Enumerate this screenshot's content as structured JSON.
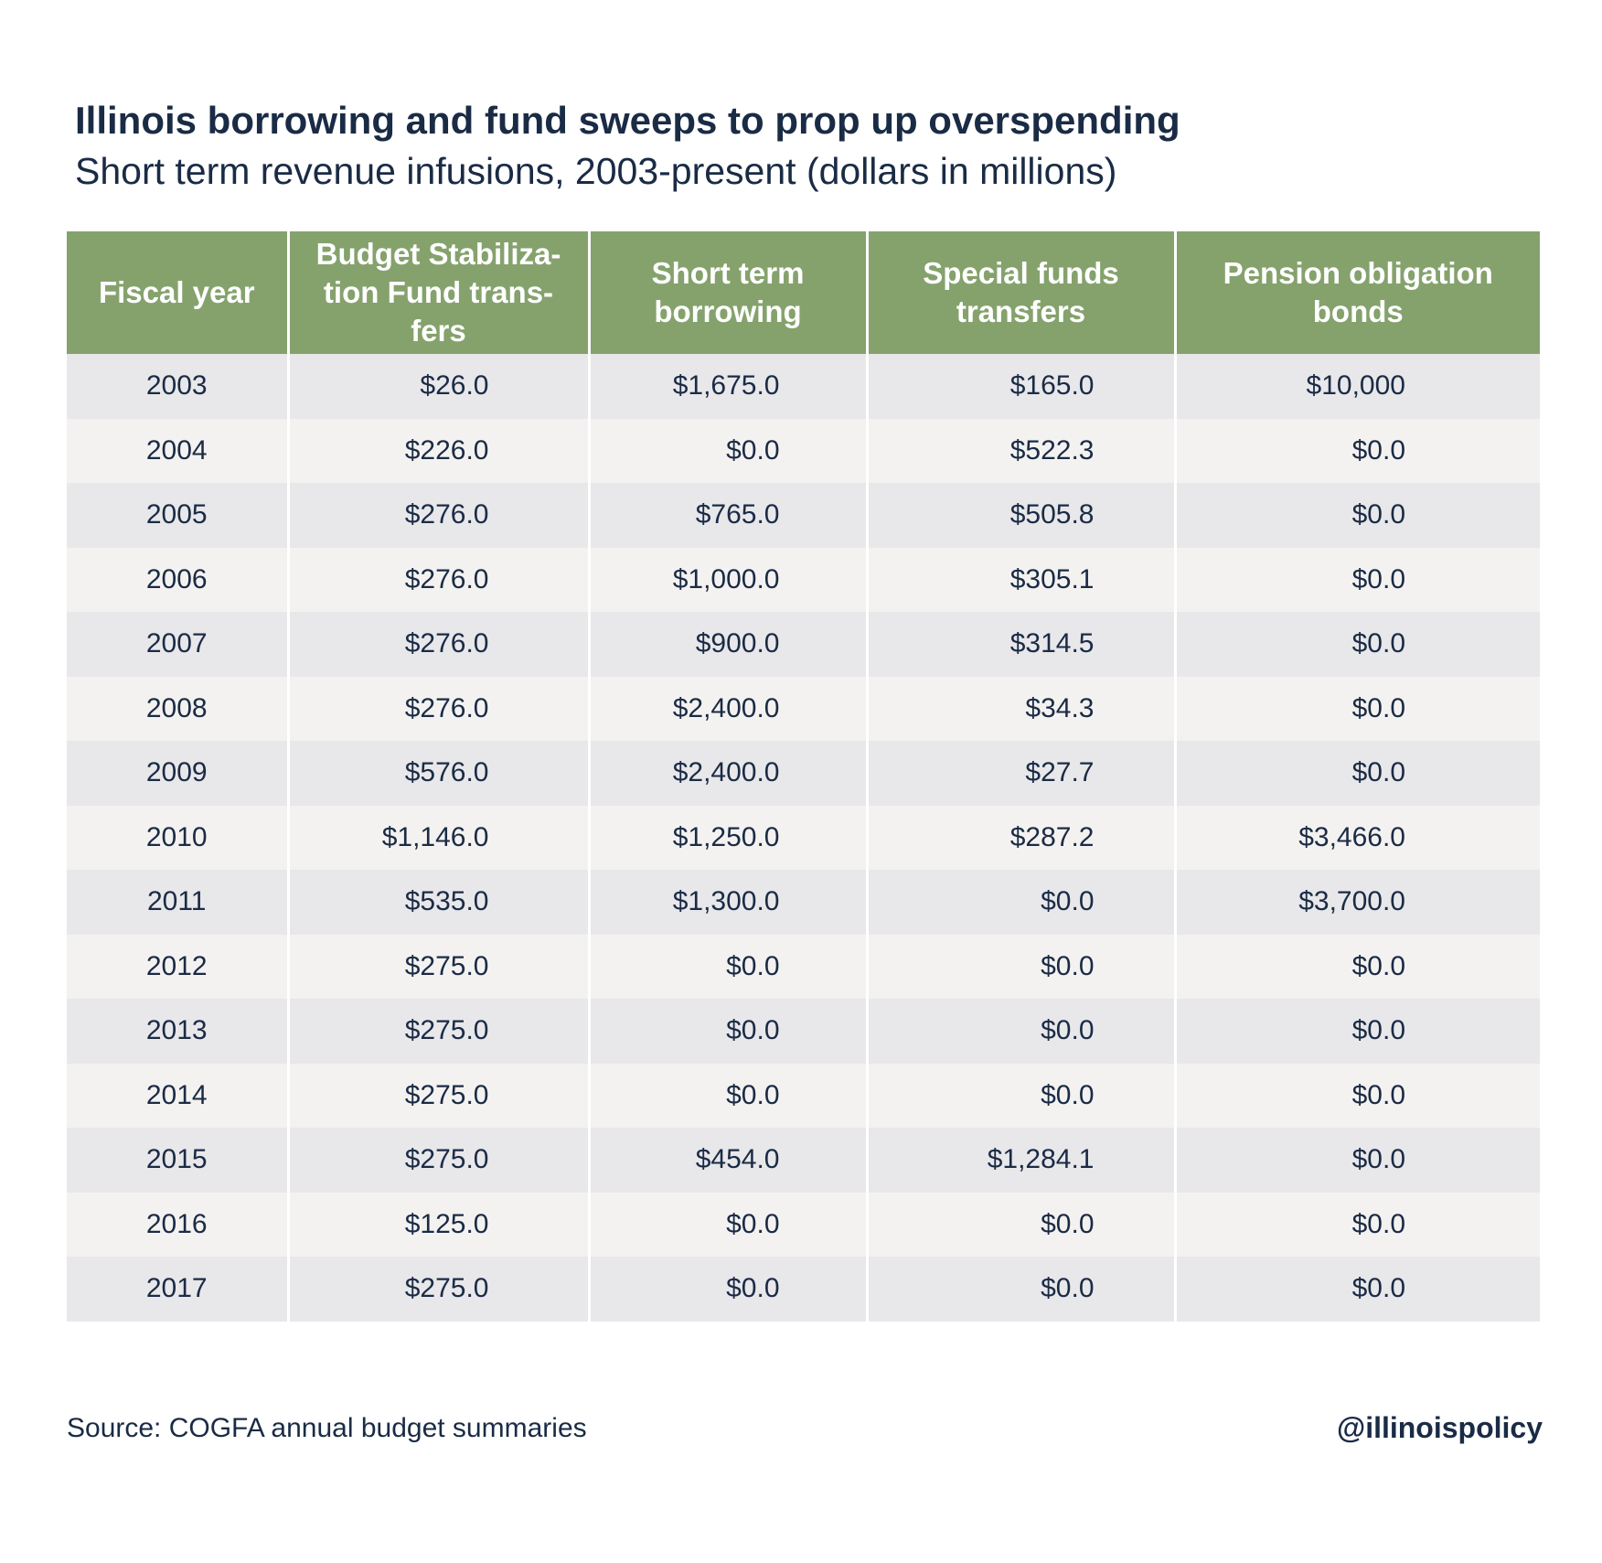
{
  "title": "Illinois borrowing and fund sweeps to prop up overspending",
  "subtitle": "Short term revenue infusions, 2003-present (dollars in millions)",
  "source": "Source: COGFA annual budget summaries",
  "handle": "@illinoispolicy",
  "colors": {
    "header_bg": "#85a26d",
    "header_text": "#ffffff",
    "row_odd": "#e8e7ea",
    "row_even": "#f4f2f0",
    "text": "#1a2b45"
  },
  "chart_data": {
    "type": "table",
    "title": "Illinois borrowing and fund sweeps to prop up overspending",
    "subtitle": "Short term revenue infusions, 2003-present (dollars in millions)",
    "columns": [
      "Fiscal year",
      "Budget Stabiliza-tion Fund trans-fers",
      "Short term borrowing",
      "Special funds transfers",
      "Pension obligation bonds"
    ],
    "rows": [
      [
        "2003",
        "$26.0",
        "$1,675.0",
        "$165.0",
        "$10,000"
      ],
      [
        "2004",
        "$226.0",
        "$0.0",
        "$522.3",
        "$0.0"
      ],
      [
        "2005",
        "$276.0",
        "$765.0",
        "$505.8",
        "$0.0"
      ],
      [
        "2006",
        "$276.0",
        "$1,000.0",
        "$305.1",
        "$0.0"
      ],
      [
        "2007",
        "$276.0",
        "$900.0",
        "$314.5",
        "$0.0"
      ],
      [
        "2008",
        "$276.0",
        "$2,400.0",
        "$34.3",
        "$0.0"
      ],
      [
        "2009",
        "$576.0",
        "$2,400.0",
        "$27.7",
        "$0.0"
      ],
      [
        "2010",
        "$1,146.0",
        "$1,250.0",
        "$287.2",
        "$3,466.0"
      ],
      [
        "2011",
        "$535.0",
        "$1,300.0",
        "$0.0",
        "$3,700.0"
      ],
      [
        "2012",
        "$275.0",
        "$0.0",
        "$0.0",
        "$0.0"
      ],
      [
        "2013",
        "$275.0",
        "$0.0",
        "$0.0",
        "$0.0"
      ],
      [
        "2014",
        "$275.0",
        "$0.0",
        "$0.0",
        "$0.0"
      ],
      [
        "2015",
        "$275.0",
        "$454.0",
        "$1,284.1",
        "$0.0"
      ],
      [
        "2016",
        "$125.0",
        "$0.0",
        "$0.0",
        "$0.0"
      ],
      [
        "2017",
        "$275.0",
        "$0.0",
        "$0.0",
        "$0.0"
      ]
    ]
  }
}
